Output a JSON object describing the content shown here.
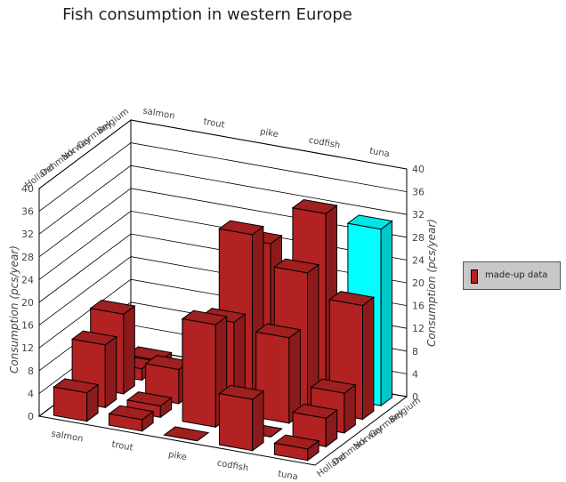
{
  "chart_data": {
    "type": "bar3d",
    "title": "Fish consumption in western Europe",
    "zlabel": "Consumption (pcs/year)",
    "zlim": [
      0,
      40
    ],
    "zticks": [
      0,
      4,
      8,
      12,
      16,
      20,
      24,
      28,
      32,
      36,
      40
    ],
    "x_categories": [
      "salmon",
      "trout",
      "pike",
      "codfish",
      "tuna"
    ],
    "y_categories": [
      "Holland",
      "Denmark",
      "Norway",
      "Germany",
      "Belgium"
    ],
    "series": [
      {
        "name": "made-up data",
        "color": "#b22222",
        "highlight_color": "#00ffff",
        "highlight": {
          "x": "tuna",
          "y": "Belgium"
        },
        "values": [
          [
            5,
            2,
            0,
            9,
            2
          ],
          [
            11,
            2,
            18,
            0,
            5
          ],
          [
            14,
            6,
            16,
            15,
            7
          ],
          [
            2,
            0,
            29,
            24,
            20
          ],
          [
            1,
            9,
            25,
            32,
            31
          ]
        ]
      }
    ],
    "legend": "right",
    "grid": true
  }
}
